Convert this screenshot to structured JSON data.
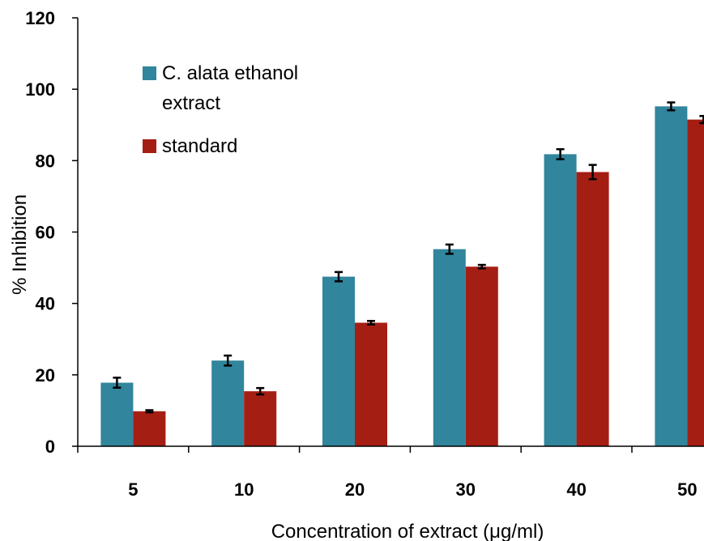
{
  "chart_data": {
    "type": "bar",
    "title": "",
    "xlabel": "Concentration of extract (μg/ml)",
    "ylabel": "% Inhibition",
    "categories": [
      "5",
      "10",
      "20",
      "30",
      "40",
      "50"
    ],
    "ylim": [
      0,
      120
    ],
    "yticks": [
      "0",
      "20",
      "40",
      "60",
      "80",
      "100",
      "120"
    ],
    "grid": false,
    "legend_position": "top-left",
    "series": [
      {
        "name": "C. alata ethanol extract",
        "name_lines": [
          "C. alata ethanol",
          "extract"
        ],
        "color": "#31859c",
        "values": [
          17.8,
          24.0,
          47.5,
          55.2,
          81.8,
          95.2
        ],
        "errors": [
          1.4,
          1.4,
          1.3,
          1.3,
          1.4,
          1.1
        ]
      },
      {
        "name": "standard",
        "name_lines": [
          "standard"
        ],
        "color": "#a51e14",
        "values": [
          9.8,
          15.4,
          34.6,
          50.3,
          76.8,
          91.5
        ],
        "errors": [
          0.3,
          0.9,
          0.5,
          0.5,
          2.0,
          1.0
        ]
      }
    ]
  }
}
